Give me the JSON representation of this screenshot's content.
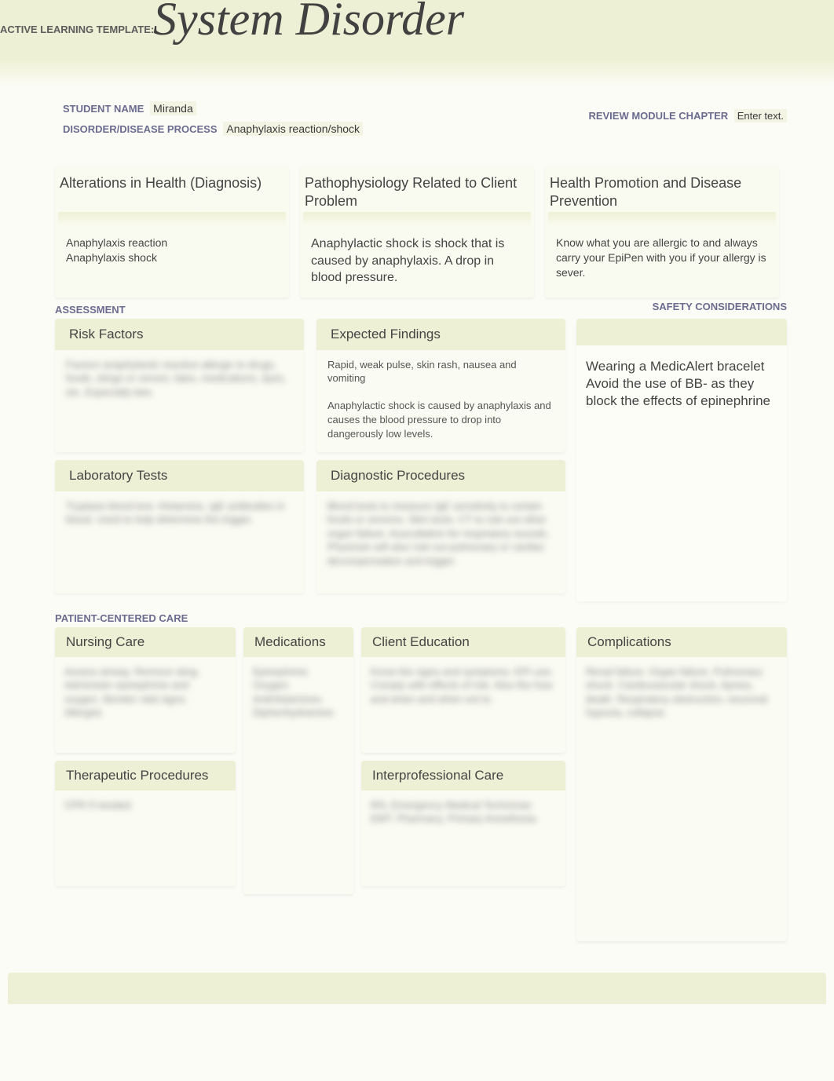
{
  "colors": {
    "banner_bg": "#eef0d5",
    "page_bg": "#fcfcf7",
    "box_bg": "#fafbf2",
    "label_color": "#6b6b8f",
    "title_color": "#414141",
    "text_color": "#444444"
  },
  "header": {
    "template_label": "ACTIVE LEARNING TEMPLATE:",
    "title": "System Disorder"
  },
  "info": {
    "student_name_label": "STUDENT NAME",
    "student_name_value": "Miranda",
    "disorder_label": "DISORDER/DISEASE PROCESS",
    "disorder_value": "Anaphylaxis reaction/shock",
    "review_label": "REVIEW MODULE CHAPTER",
    "review_value": "Enter text."
  },
  "top_boxes": {
    "alterations": {
      "title": "Alterations in Health (Diagnosis)",
      "content": "Anaphylaxis reaction\nAnaphylaxis shock"
    },
    "pathophysiology": {
      "title": "Pathophysiology Related to Client Problem",
      "content": "Anaphylactic shock is shock that is caused by anaphylaxis.  A drop in blood pressure."
    },
    "health_promotion": {
      "title": "Health Promotion and Disease Prevention",
      "content": "Know what you are allergic to and always carry your EpiPen with you if your allergy is sever."
    }
  },
  "sections": {
    "assessment_label": "ASSESSMENT",
    "safety_label": "SAFETY CONSIDERATIONS",
    "pcc_label": "PATIENT-CENTERED CARE"
  },
  "assessment": {
    "risk_factors": {
      "title": "Risk Factors",
      "content_blurred": "Factors anaphylactic reaction allergic to drugs, foods, stings or venom, latex, medications, dyes, etc. Especially bee."
    },
    "expected_findings": {
      "title": "Expected Findings",
      "content": "Rapid, weak pulse, skin rash, nausea and vomiting\n\nAnaphylactic shock is caused by anaphylaxis and causes the blood pressure to drop into dangerously low levels."
    },
    "lab_tests": {
      "title": "Laboratory Tests",
      "content_blurred": "Tryptase blood test. Histamine, IgE antibodies in blood. Used to help determine the trigger."
    },
    "diagnostic": {
      "title": "Diagnostic Procedures",
      "content_blurred": "Blood tests to measure IgE sensitivity to certain foods or venoms. Skin tests. CT to rule out other organ failure. Auscultation for respiratory sounds. Physician will also rule out pulmonary or cardiac decompensation and trigger."
    },
    "safety_content": "Wearing a MedicAlert bracelet\nAvoid the use of BB- as they block the effects of epinephrine"
  },
  "pcc": {
    "nursing_care": {
      "title": "Nursing Care",
      "content_blurred": "Assess airway. Remove sting. Administer epinephrine and oxygen. Monitor vital signs. Allergist."
    },
    "therapeutic": {
      "title": "Therapeutic Procedures",
      "content_blurred": "CPR if needed"
    },
    "medications": {
      "title": "Medications",
      "content_blurred": "Epinephrine. Oxygen. AntiHistamines. Diphenhydramine."
    },
    "client_education": {
      "title": "Client Education",
      "content_blurred": "Know the signs and symptoms. EPI use. Comply with effects of risk. Also the how and when and when not to."
    },
    "interprofessional": {
      "title": "Interprofessional Care",
      "content_blurred": "RN, Emergency Medical Technician EMT. Pharmacy. Primary Anesthesia."
    },
    "complications": {
      "title": "Complications",
      "content_blurred": "Renal failure. Organ failure. Pulmonary shock. Cardiovascular shock, Apnea, death. Respiratory obstruction, neuronal hypoxia, collapse."
    }
  }
}
